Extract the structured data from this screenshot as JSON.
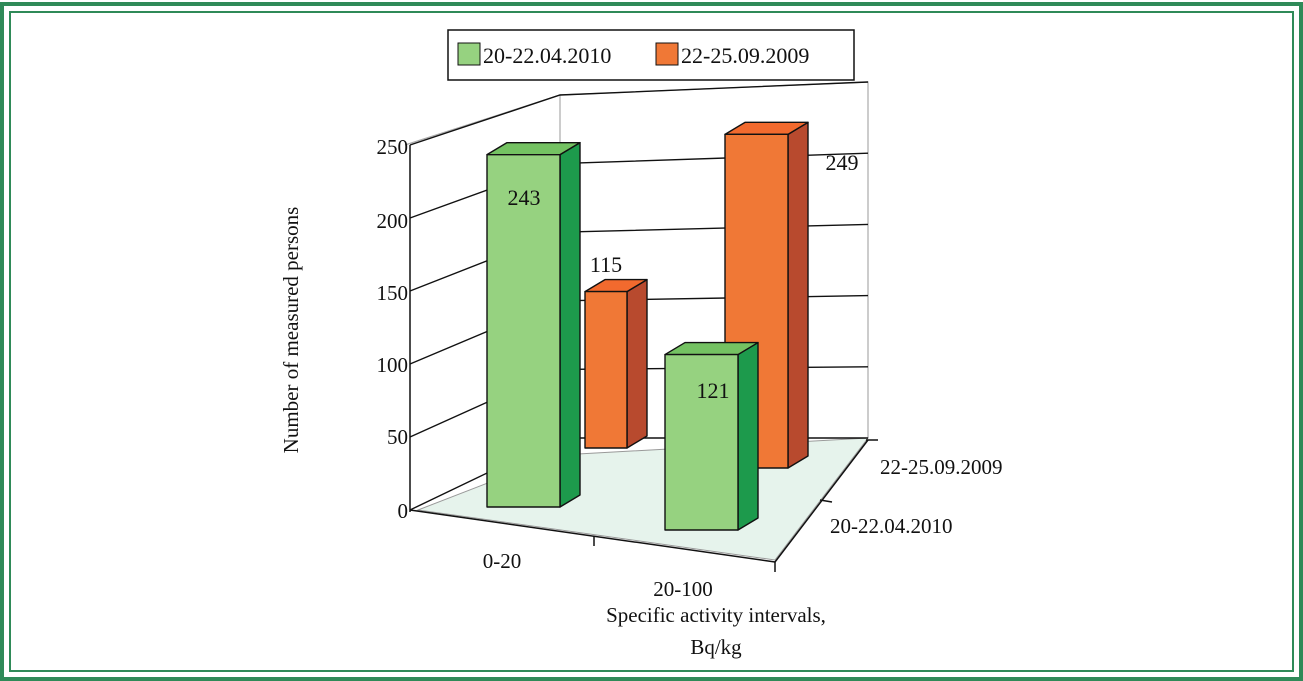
{
  "chart_data": {
    "type": "bar",
    "subtype": "3d-clustered-depth",
    "categories": [
      "0-20",
      "20-100"
    ],
    "series": [
      {
        "name": "20-22.04.2010",
        "values": [
          243,
          121
        ]
      },
      {
        "name": "22-25.09.2009",
        "values": [
          115,
          249
        ]
      }
    ],
    "data_labels": [
      "243",
      "115",
      "121",
      "249"
    ],
    "y_ticks": [
      "0",
      "50",
      "100",
      "150",
      "200",
      "250"
    ],
    "ylim": [
      0,
      250
    ],
    "ylabel": "Number of measured persons",
    "xlabel_line1": "Specific activity intervals,",
    "xlabel_line2": "Bq/kg",
    "depth_labels": [
      "20-22.04.2010",
      "22-25.09.2009"
    ],
    "grid": true,
    "legend_position": "top-center",
    "colors": {
      "series1_front": "#96d280",
      "series1_top": "#74c262",
      "series1_side": "#1d9a4c",
      "series2_front": "#f07836",
      "series2_top": "#f26a2e",
      "series2_side": "#b84a2e",
      "floor": "#e6f3ec",
      "frame": "#2f8a58"
    }
  }
}
